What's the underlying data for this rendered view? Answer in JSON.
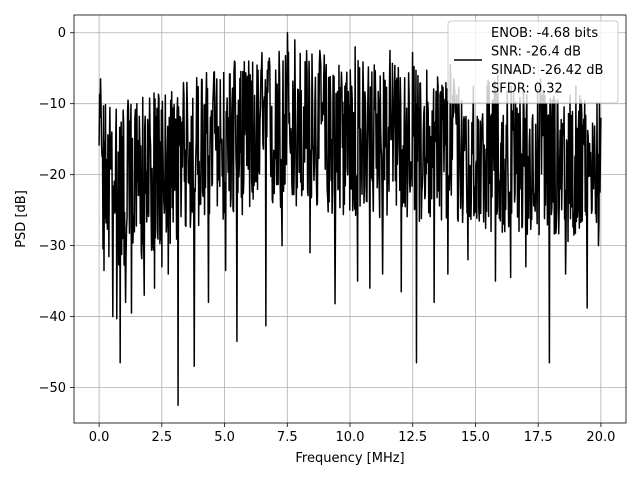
{
  "chart_data": {
    "type": "line",
    "title": "",
    "xlabel": "Frequency [MHz]",
    "ylabel": "PSD [dB]",
    "xlim": [
      -1.0,
      21.0
    ],
    "ylim": [
      -55.0,
      2.5
    ],
    "xticks": [
      0.0,
      2.5,
      5.0,
      7.5,
      10.0,
      12.5,
      15.0,
      17.5,
      20.0
    ],
    "xtick_labels": [
      "0.0",
      "2.5",
      "5.0",
      "7.5",
      "10.0",
      "12.5",
      "15.0",
      "17.5",
      "20.0"
    ],
    "yticks": [
      0,
      -10,
      -20,
      -30,
      -40,
      -50
    ],
    "ytick_labels": [
      "0",
      "−10",
      "−20",
      "−30",
      "−40",
      "−50"
    ],
    "grid": true,
    "legend_position": "top-right",
    "series": [
      {
        "name": "ENOB: -4.68 bits\nSNR: -26.4 dB\nSINAD: -26.42 dB\nSFDR: 0.32",
        "color": "#000000",
        "x_range": [
          0.0,
          20.0
        ],
        "points": 1024,
        "envelope_top": [
          [
            0.0,
            -8
          ],
          [
            1.0,
            -9
          ],
          [
            2.0,
            -8
          ],
          [
            3.0,
            -7
          ],
          [
            4.0,
            -5
          ],
          [
            5.0,
            -4
          ],
          [
            6.0,
            -3
          ],
          [
            7.5,
            -1
          ],
          [
            9.0,
            -2
          ],
          [
            10.0,
            -3
          ],
          [
            11.0,
            -3
          ],
          [
            12.5,
            -4
          ],
          [
            14.0,
            -5
          ],
          [
            15.0,
            -6
          ],
          [
            16.0,
            -6
          ],
          [
            17.0,
            -7
          ],
          [
            18.0,
            -7
          ],
          [
            19.0,
            -8
          ],
          [
            20.0,
            -8
          ]
        ],
        "envelope_bottom": [
          [
            0.0,
            -33
          ],
          [
            1.0,
            -34
          ],
          [
            2.0,
            -32
          ],
          [
            3.0,
            -30
          ],
          [
            4.0,
            -28
          ],
          [
            5.0,
            -27
          ],
          [
            6.0,
            -26
          ],
          [
            7.5,
            -26
          ],
          [
            9.0,
            -26
          ],
          [
            10.0,
            -27
          ],
          [
            11.0,
            -27
          ],
          [
            12.5,
            -27
          ],
          [
            14.0,
            -28
          ],
          [
            15.0,
            -28
          ],
          [
            16.0,
            -29
          ],
          [
            17.0,
            -29
          ],
          [
            18.0,
            -30
          ],
          [
            19.0,
            -30
          ],
          [
            20.0,
            -29
          ]
        ],
        "dips": [
          [
            0.2,
            -33.5
          ],
          [
            0.55,
            -40
          ],
          [
            0.7,
            -40.3
          ],
          [
            0.85,
            -46.5
          ],
          [
            1.05,
            -38
          ],
          [
            1.3,
            -39.5
          ],
          [
            1.8,
            -37
          ],
          [
            2.2,
            -36
          ],
          [
            2.5,
            -33
          ],
          [
            2.75,
            -34
          ],
          [
            3.15,
            -52.5
          ],
          [
            3.5,
            -36
          ],
          [
            3.8,
            -47
          ],
          [
            4.35,
            -38
          ],
          [
            5.05,
            -33.5
          ],
          [
            5.5,
            -43.5
          ],
          [
            6.65,
            -41.3
          ],
          [
            7.3,
            -30
          ],
          [
            8.4,
            -31
          ],
          [
            9.4,
            -38.2
          ],
          [
            10.3,
            -35
          ],
          [
            10.8,
            -36
          ],
          [
            11.3,
            -34
          ],
          [
            12.05,
            -36.5
          ],
          [
            12.65,
            -46.5
          ],
          [
            13.35,
            -38
          ],
          [
            13.9,
            -34
          ],
          [
            14.7,
            -32
          ],
          [
            15.8,
            -35
          ],
          [
            16.4,
            -34.5
          ],
          [
            17.0,
            -33
          ],
          [
            17.95,
            -46.5
          ],
          [
            18.6,
            -34
          ],
          [
            19.45,
            -38.8
          ],
          [
            19.9,
            -30
          ]
        ],
        "peaks": [
          [
            0.05,
            -6.5
          ],
          [
            0.5,
            -14
          ],
          [
            1.5,
            -10
          ],
          [
            3.5,
            -7
          ],
          [
            4.6,
            -5.5
          ],
          [
            5.4,
            -4
          ],
          [
            6.5,
            -2.8
          ],
          [
            7.5,
            0.0
          ],
          [
            7.8,
            -1
          ],
          [
            8.8,
            -2.5
          ],
          [
            10.2,
            -2
          ],
          [
            11.6,
            -2.5
          ],
          [
            12.5,
            -2.8
          ],
          [
            14.0,
            -4.5
          ],
          [
            15.9,
            -6
          ],
          [
            17.6,
            -6.5
          ],
          [
            19.0,
            -7.5
          ],
          [
            19.95,
            -10
          ]
        ]
      }
    ]
  }
}
